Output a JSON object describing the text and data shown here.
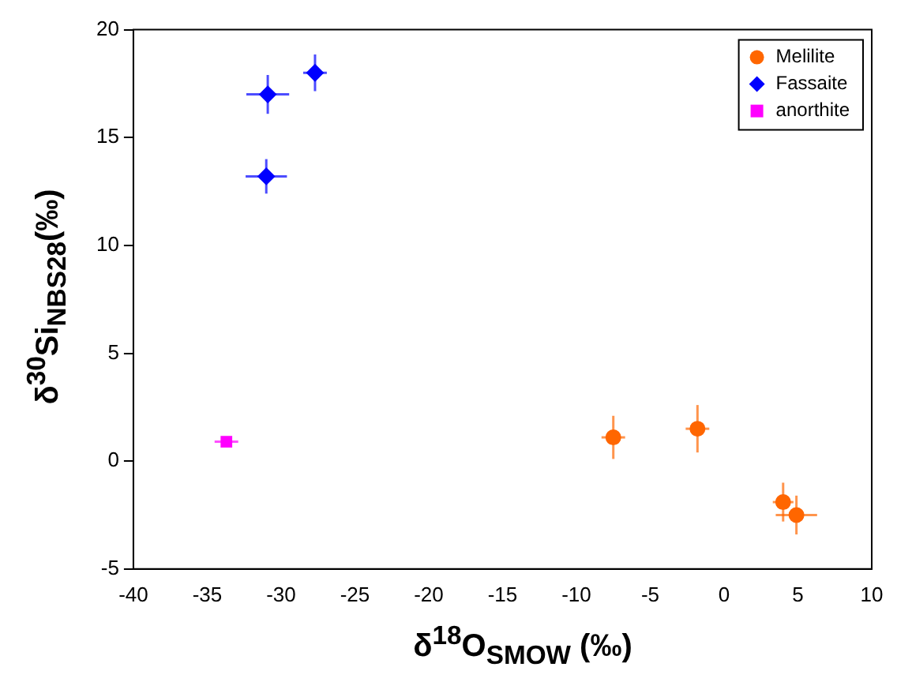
{
  "chart_data": {
    "type": "scatter",
    "xlabel": "δ$^{18}$O$_{SMOW}$ (‰)",
    "ylabel": "δ$^{30}$Si$_{NBS28}$(‰)",
    "xlim": [
      -40,
      10
    ],
    "ylim": [
      -5,
      20
    ],
    "xticks": [
      -40,
      -35,
      -30,
      -25,
      -20,
      -15,
      -10,
      -5,
      0,
      5,
      10
    ],
    "yticks": [
      -5,
      0,
      5,
      10,
      15,
      20
    ],
    "grid": false,
    "legend": "top right",
    "series": [
      {
        "name": "Melilite",
        "color": "#ff6600",
        "marker": "circle",
        "x": [
          -7.5,
          -1.8,
          4.0,
          4.9
        ],
        "values": [
          1.1,
          1.5,
          -1.9,
          -2.5
        ],
        "errors": [
          1.0,
          1.1,
          0.9,
          0.9
        ],
        "xerrors": [
          0.8,
          0.8,
          0.7,
          1.4
        ]
      },
      {
        "name": "Fassaite",
        "color": "#0000ff",
        "marker": "diamond",
        "x": [
          -30.9,
          -27.7,
          -31.0
        ],
        "values": [
          17.0,
          18.0,
          13.2
        ],
        "errors": [
          0.9,
          0.85,
          0.8
        ],
        "xerrors": [
          1.45,
          0.8,
          1.4
        ]
      },
      {
        "name": "anorthite",
        "color": "#ff00ff",
        "marker": "square",
        "x": [
          -33.7
        ],
        "values": [
          0.9
        ],
        "errors": [
          0.2
        ],
        "xerrors": [
          0.8
        ]
      }
    ]
  }
}
